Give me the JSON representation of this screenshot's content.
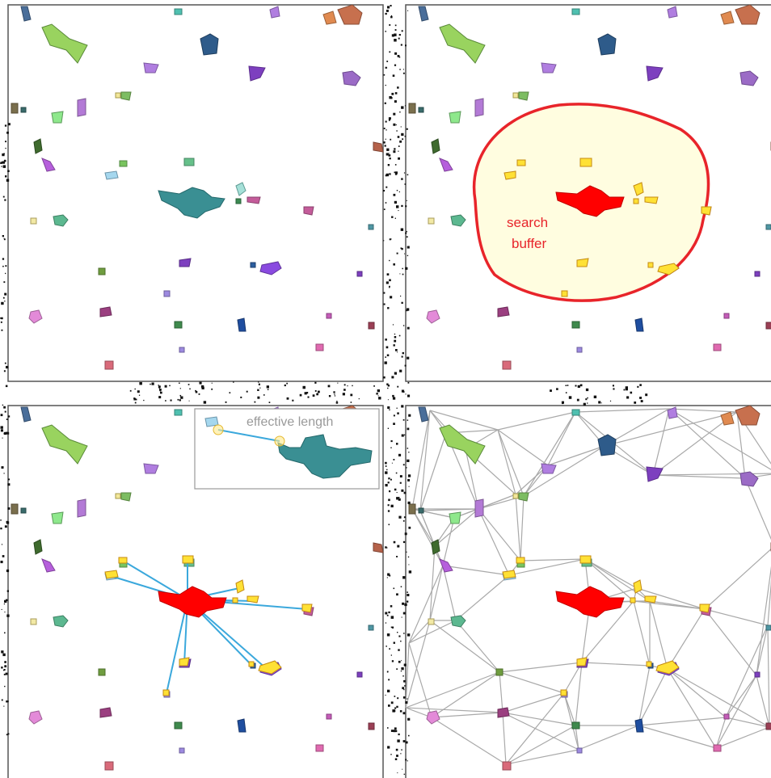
{
  "panels": [
    {
      "id": "habitat-patches",
      "label": ""
    },
    {
      "id": "search-buffer",
      "label": "search buffer"
    },
    {
      "id": "effective-length",
      "label": "effective length"
    },
    {
      "id": "connectivity-network",
      "label": ""
    }
  ],
  "annotations": {
    "search_buffer_line1": "search",
    "search_buffer_line2": "buffer",
    "effective_length": "effective length"
  },
  "colors": {
    "focal_patch": "#3a8f93",
    "focal_patch_selected": "#ff0000",
    "patch_in_buffer": "#ffe135",
    "buffer_fill": "#fffde0",
    "buffer_stroke": "#e8242a",
    "link_line": "#3ba8dc",
    "network_edge": "#a9a9a9",
    "panel_border": "#555555",
    "background_speckle": "#111111"
  }
}
